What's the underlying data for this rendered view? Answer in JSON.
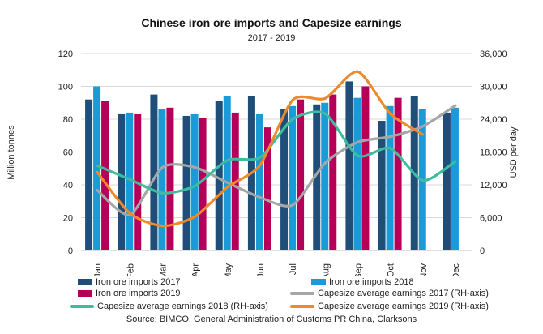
{
  "chart_data": {
    "type": "bar",
    "title": "Chinese iron ore imports and Capesize earnings",
    "subtitle": "2017 - 2019",
    "ylabel": "Million tonnes",
    "ylabel_right": "USD per day",
    "ylim": [
      0,
      120
    ],
    "ylim_right": [
      0,
      36000
    ],
    "yticks": [
      "0",
      "20",
      "40",
      "60",
      "80",
      "100",
      "120"
    ],
    "yticks_right": [
      "0",
      "6,000",
      "12,000",
      "18,000",
      "24,000",
      "30,000",
      "36,000"
    ],
    "categories": [
      "Jan",
      "Feb",
      "Mar",
      "Apr",
      "May",
      "Jun",
      "Jul",
      "Aug",
      "Sep",
      "Oct",
      "Nov",
      "Dec"
    ],
    "series": [
      {
        "name": "Iron ore imports 2017",
        "kind": "bar",
        "color": "#1f4e79",
        "values": [
          92,
          83,
          95,
          82,
          91,
          94,
          86,
          89,
          103,
          79,
          94,
          84
        ]
      },
      {
        "name": "Iron ore imports 2018",
        "kind": "bar",
        "color": "#1a9bd7",
        "values": [
          100,
          84,
          86,
          83,
          94,
          83,
          88,
          90,
          93,
          88,
          86,
          87
        ]
      },
      {
        "name": "Iron ore imports 2019",
        "kind": "bar",
        "color": "#b5005a",
        "values": [
          91,
          83,
          87,
          81,
          84,
          75,
          92,
          95,
          100,
          93,
          null,
          null
        ]
      },
      {
        "name": "Capesize average earnings 2017 (RH-axis)",
        "kind": "line",
        "axis": "right",
        "color": "#a6a6a6",
        "values": [
          11000,
          6500,
          15200,
          15200,
          12400,
          9700,
          8300,
          16000,
          19800,
          20800,
          22700,
          26500
        ]
      },
      {
        "name": "Capesize average earnings 2018 (RH-axis)",
        "kind": "line",
        "axis": "right",
        "color": "#3dbd9e",
        "values": [
          15500,
          13000,
          10500,
          11800,
          16500,
          17000,
          24000,
          25000,
          17300,
          18700,
          12800,
          16300
        ]
      },
      {
        "name": "Capesize average earnings 2019 (RH-axis)",
        "kind": "line",
        "axis": "right",
        "color": "#ee8a2b",
        "values": [
          14300,
          6800,
          4500,
          6200,
          11600,
          15600,
          27500,
          27800,
          32700,
          25000,
          21200,
          null
        ]
      }
    ]
  },
  "legend": {
    "bar2017": "Iron ore imports 2017",
    "bar2018": "Iron ore imports 2018",
    "bar2019": "Iron ore imports 2019",
    "line2017": "Capesize average earnings 2017 (RH-axis)",
    "line2018": "Capesize average earnings 2018 (RH-axis)",
    "line2019": "Capesize average earnings 2019 (RH-axis)"
  },
  "source": "Source: BIMCO, General Administration of Customs PR China, Clarksons",
  "colors": {
    "bar2017": "#1f4e79",
    "bar2018": "#1a9bd7",
    "bar2019": "#b5005a",
    "line2017": "#a6a6a6",
    "line2018": "#3dbd9e",
    "line2019": "#ee8a2b"
  }
}
